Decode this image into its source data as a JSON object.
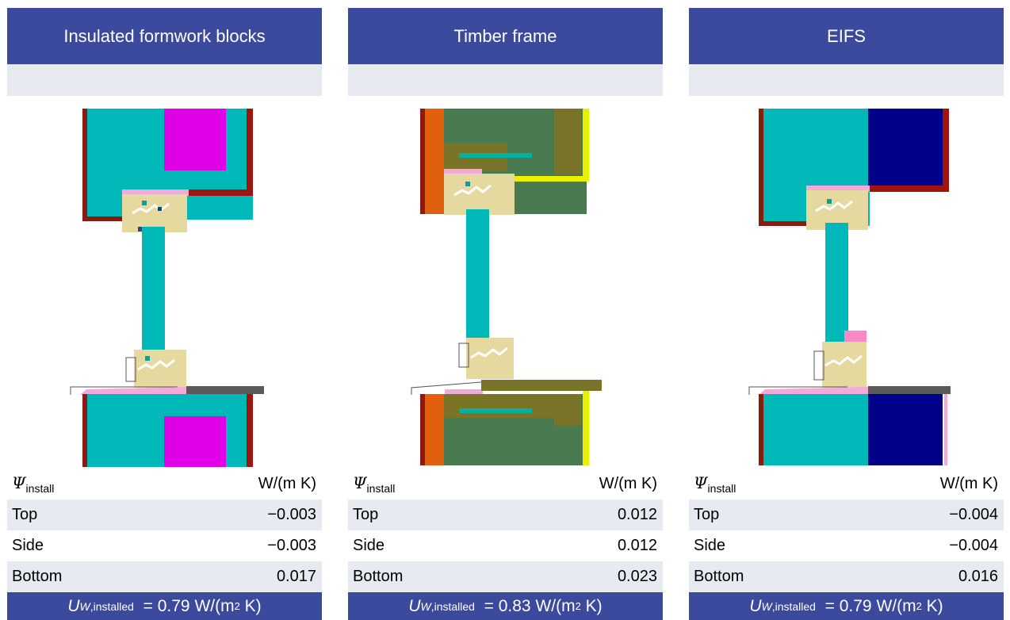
{
  "panels": [
    {
      "title": "Insulated formwork blocks",
      "psi_symbol": "Ψ",
      "psi_subscript": "install",
      "unit": "W/(m K)",
      "rows": [
        {
          "label": "Top",
          "value": "−0.003"
        },
        {
          "label": "Side",
          "value": "−0.003"
        },
        {
          "label": "Bottom",
          "value": "0.017"
        }
      ],
      "u_symbol": "U",
      "u_sub_w": "W",
      "u_sub_text": ",installed",
      "u_value": "= 0.79 W/(m",
      "u_sup": "2",
      "u_tail": " K)"
    },
    {
      "title": "Timber frame",
      "psi_symbol": "Ψ",
      "psi_subscript": "install",
      "unit": "W/(m K)",
      "rows": [
        {
          "label": "Top",
          "value": "0.012"
        },
        {
          "label": "Side",
          "value": "0.012"
        },
        {
          "label": "Bottom",
          "value": "0.023"
        }
      ],
      "u_symbol": "U",
      "u_sub_w": "W",
      "u_sub_text": ",installed",
      "u_value": "= 0.83 W/(m",
      "u_sup": "2",
      "u_tail": " K)"
    },
    {
      "title": "EIFS",
      "psi_symbol": "Ψ",
      "psi_subscript": "install",
      "unit": "W/(m K)",
      "rows": [
        {
          "label": "Top",
          "value": "−0.004"
        },
        {
          "label": "Side",
          "value": "−0.004"
        },
        {
          "label": "Bottom",
          "value": "0.016"
        }
      ],
      "u_symbol": "U",
      "u_sub_w": "W",
      "u_sub_text": ",installed",
      "u_value": "= 0.79 W/(m",
      "u_sup": "2",
      "u_tail": " K)"
    }
  ],
  "colors": {
    "header_bg": "#3c4a9e",
    "row_alt_bg": "#e8eaf2",
    "masonry_teal": "#00b8b8",
    "insulation_magenta": "#e000e8",
    "render_darkred": "#8b1a10",
    "frame_beige": "#e6d9a0",
    "seal_pink": "#f4a9d8",
    "sill_gray": "#5a5a5a",
    "timber_green": "#4a7a50",
    "timber_olive": "#7a7428",
    "timber_orange": "#e06010",
    "membrane_yellow": "#e8f000",
    "eps_navy": "#000088"
  }
}
